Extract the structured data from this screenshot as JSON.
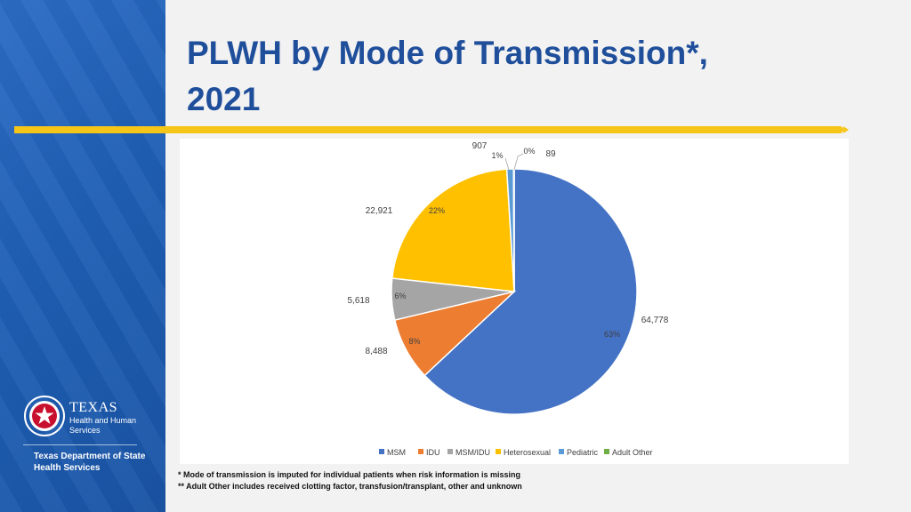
{
  "slide": {
    "title_line1": "PLWH by Mode of Transmission*,",
    "title_line2": "2021",
    "footnote1": "* Mode of transmission is imputed for individual patients when risk information is missing",
    "footnote2": "** Adult Other includes received clotting factor, transfusion/transplant, other and unknown"
  },
  "branding": {
    "logo_name": "TEXAS",
    "logo_sub_line1": "Health and Human",
    "logo_sub_line2": "Services",
    "dept_line1": "Texas Department of State",
    "dept_line2": "Health Services",
    "colors": {
      "sidebar": "#1f5fb5",
      "rule": "#f5c518",
      "title": "#1f4e9b"
    }
  },
  "chart_data": {
    "type": "pie",
    "title": "",
    "legend_position": "bottom",
    "slices": [
      {
        "name": "MSM",
        "value": 64778,
        "value_label": "64,778",
        "percent_label": "63%",
        "color": "#4472c4"
      },
      {
        "name": "IDU",
        "value": 8488,
        "value_label": "8,488",
        "percent_label": "8%",
        "color": "#ed7d31"
      },
      {
        "name": "MSM/IDU",
        "value": 5618,
        "value_label": "5,618",
        "percent_label": "6%",
        "color": "#a5a5a5"
      },
      {
        "name": "Heterosexual",
        "value": 22921,
        "value_label": "22,921",
        "percent_label": "22%",
        "color": "#ffc000"
      },
      {
        "name": "Pediatric",
        "value": 907,
        "value_label": "907",
        "percent_label": "1%",
        "color": "#5b9bd5"
      },
      {
        "name": "Adult Other",
        "value": 89,
        "value_label": "89",
        "percent_label": "0%",
        "color": "#70ad47"
      }
    ]
  }
}
